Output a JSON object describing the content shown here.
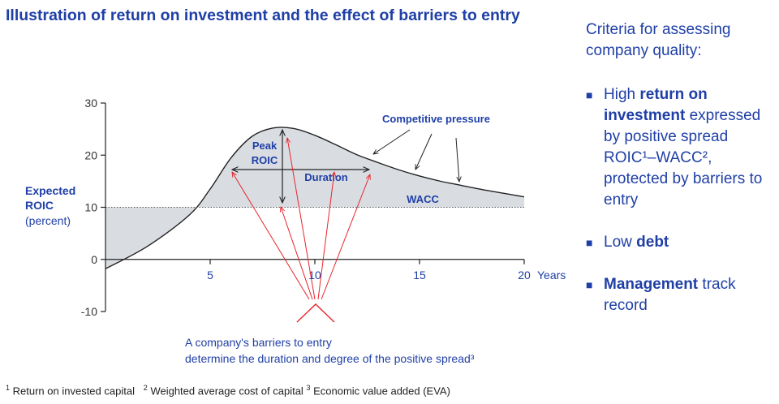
{
  "title": "Illustration of return on investment and the effect of barriers to entry",
  "colors": {
    "blue": "#1f3fa6",
    "red": "#e8242c",
    "shade": "#d9dde2"
  },
  "chart_data": {
    "type": "area",
    "x_ticks": [
      "5",
      "10",
      "15",
      "20"
    ],
    "x_unit_label": "Years",
    "y_ticks": [
      "30",
      "20",
      "10",
      "0",
      "-10"
    ],
    "xlim": [
      0,
      20
    ],
    "ylim": [
      -10,
      30
    ],
    "ylabel_line1": "Expected",
    "ylabel_line2": "ROIC",
    "ylabel_line3": "(percent)",
    "series": [
      {
        "name": "ROIC",
        "x": [
          0,
          2,
          4,
          5,
          6,
          7,
          8,
          9,
          10,
          11,
          12,
          13,
          14,
          15,
          16,
          17,
          18,
          19,
          20
        ],
        "values": [
          -1.8,
          2.5,
          8.5,
          13.5,
          19.5,
          23.6,
          25.2,
          25.1,
          23.8,
          22,
          20.1,
          18.6,
          17.2,
          16,
          15,
          14.2,
          13.4,
          12.7,
          12
        ]
      },
      {
        "name": "WACC",
        "x": [
          0,
          20
        ],
        "values": [
          10,
          10
        ]
      }
    ],
    "annotations": {
      "peak_line1": "Peak",
      "peak_line2": "ROIC",
      "duration": "Duration",
      "wacc": "WACC",
      "competitive": "Competitive  pressure",
      "barriers_line1": "A company's barriers to entry",
      "barriers_line2": "determine the duration and degree of the positive spread³"
    }
  },
  "criteria": {
    "intro": "Criteria for assessing company quality:",
    "items": [
      {
        "pre": "High ",
        "bold": "return on investment",
        "post": " expressed by positive spread ROIC¹–WACC², protected by barriers to entry"
      },
      {
        "pre": "Low ",
        "bold": "debt",
        "post": ""
      },
      {
        "pre": "",
        "bold": "Management",
        "post": " track record"
      }
    ],
    "bullet_glyph": "■"
  },
  "footnote": {
    "sup1": "1",
    "text1": "Return on invested capital",
    "sup2": "2",
    "text2": "Weighted average cost of capital",
    "sup3": "3",
    "text3": "Economic value added (EVA)"
  }
}
